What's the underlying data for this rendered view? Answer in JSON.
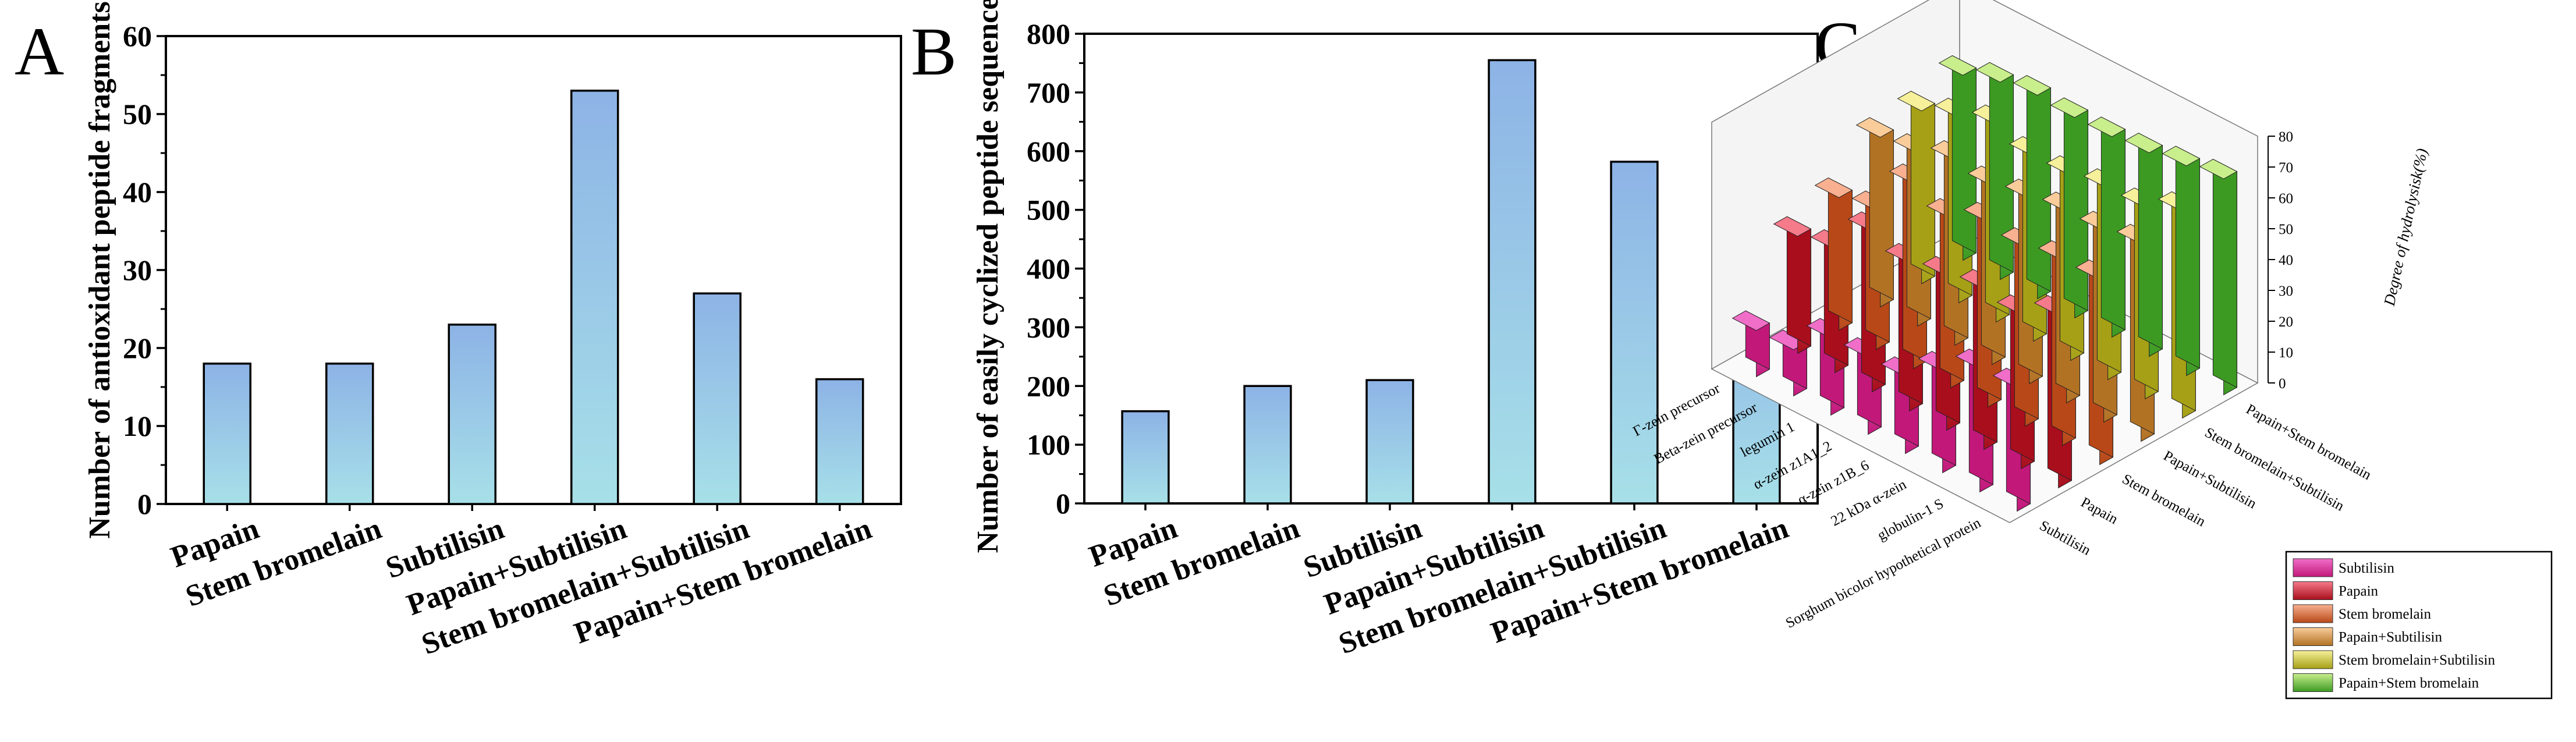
{
  "panels": {
    "A": {
      "letter": "A",
      "chart_data": {
        "type": "bar",
        "categories": [
          "Papain",
          "Stem bromelain",
          "Subtilisin",
          "Papain+Subtilisin",
          "Stem bromelain+Subtilisin",
          "Papain+Stem bromelain"
        ],
        "values": [
          18,
          18,
          23,
          53,
          27,
          16
        ],
        "title": "",
        "xlabel": "",
        "ylabel": "Number of antioxidant peptide fragments",
        "ylim": [
          0,
          60
        ],
        "yticks": [
          0,
          10,
          20,
          30,
          40,
          50,
          60
        ],
        "bar_gradient": [
          "#8db3e6",
          "#a7e0e8"
        ],
        "grid": false
      }
    },
    "B": {
      "letter": "B",
      "chart_data": {
        "type": "bar",
        "categories": [
          "Papain",
          "Stem bromelain",
          "Subtilisin",
          "Papain+Subtilisin",
          "Stem bromelain+Subtilisin",
          "Papain+Stem bromelain"
        ],
        "values": [
          157,
          200,
          210,
          755,
          582,
          367
        ],
        "title": "",
        "xlabel": "",
        "ylabel": "Number of easily cyclized peptide sequences",
        "ylim": [
          0,
          800
        ],
        "yticks": [
          0,
          100,
          200,
          300,
          400,
          500,
          600,
          700,
          800
        ],
        "bar_gradient": [
          "#8db3e6",
          "#a7e0e8"
        ],
        "grid": false
      }
    },
    "C": {
      "letter": "C",
      "chart_data": {
        "type": "bar3d",
        "title": "",
        "zlabel": "Degree of hydrolysisk(%)",
        "zlim": [
          0,
          80
        ],
        "zticks": [
          0,
          10,
          20,
          30,
          40,
          50,
          60,
          70,
          80
        ],
        "proteins": [
          "Sorghum bicolor hypothetical protein",
          "globulin-1 S",
          "22 kDa α-zein",
          "α-zein z1B_6",
          "α-zein z1A1_2",
          "legumin 1",
          "Beta-zein precursor",
          "Γ-zein precursor"
        ],
        "series": [
          {
            "name": "Subtilisin",
            "color_top": "#f06ec8",
            "color_bottom": "#c2187a",
            "values": [
              40,
              40,
              33,
              25,
              25,
              25,
              15,
              15
            ]
          },
          {
            "name": "Papain",
            "color_top": "#f57a8a",
            "color_bottom": "#a80e1c",
            "values": [
              56,
              50,
              52,
              50,
              48,
              52,
              40,
              38
            ]
          },
          {
            "name": "Stem bromelain",
            "color_top": "#f8b090",
            "color_bottom": "#b84818",
            "values": [
              60,
              60,
              58,
              60,
              55,
              60,
              45,
              43
            ]
          },
          {
            "name": "Papain+Subtilisin",
            "color_top": "#f9cc9a",
            "color_bottom": "#b27224",
            "values": [
              64,
              62,
              62,
              60,
              58,
              60,
              56,
              55
            ]
          },
          {
            "name": "Stem bromelain+Subtilisin",
            "color_top": "#f6f09a",
            "color_bottom": "#a6a016",
            "values": [
              67,
              62,
              62,
              60,
              60,
              64,
              60,
              56
            ]
          },
          {
            "name": "Papain+Stem bromelain",
            "color_top": "#c9ee8c",
            "color_bottom": "#3c9a22",
            "values": [
              70,
              68,
              66,
              65,
              65,
              66,
              64,
              60
            ]
          }
        ],
        "legend_position": "bottom-right"
      }
    }
  }
}
